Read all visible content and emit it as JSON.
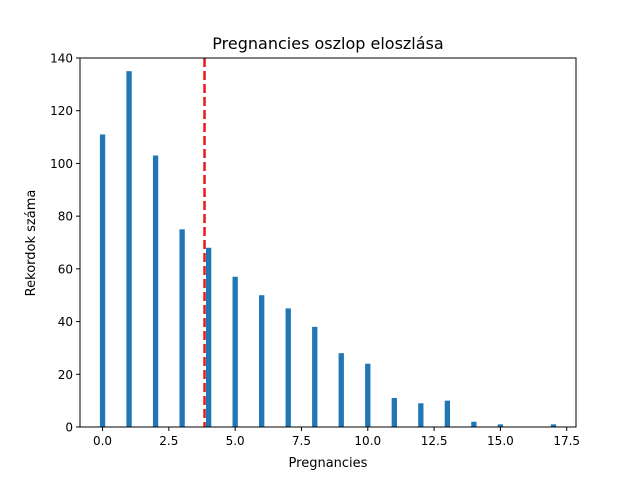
{
  "chart_data": {
    "type": "bar",
    "title": "Pregnancies oszlop eloszlása",
    "xlabel": "Pregnancies",
    "ylabel": "Rekordok száma",
    "x": [
      0,
      1,
      2,
      3,
      4,
      5,
      6,
      7,
      8,
      9,
      10,
      11,
      12,
      13,
      14,
      15,
      17
    ],
    "values": [
      111,
      135,
      103,
      75,
      68,
      57,
      50,
      45,
      38,
      28,
      24,
      11,
      9,
      10,
      2,
      1,
      1
    ],
    "xlim": [
      -0.85,
      17.85
    ],
    "ylim": [
      0,
      140
    ],
    "xticks": [
      0,
      2.5,
      5,
      7.5,
      10,
      12.5,
      15,
      17.5
    ],
    "xtick_labels": [
      "0.0",
      "2.5",
      "5.0",
      "7.5",
      "10.0",
      "12.5",
      "15.0",
      "17.5"
    ],
    "yticks": [
      0,
      20,
      40,
      60,
      80,
      100,
      120,
      140
    ],
    "ytick_labels": [
      "0",
      "20",
      "40",
      "60",
      "80",
      "100",
      "120",
      "140"
    ],
    "bar_color": "#1f77b4",
    "reference_line": {
      "x": 3.845,
      "color": "#e41a1c",
      "style": "dashed"
    },
    "grid": false,
    "legend": "none"
  }
}
